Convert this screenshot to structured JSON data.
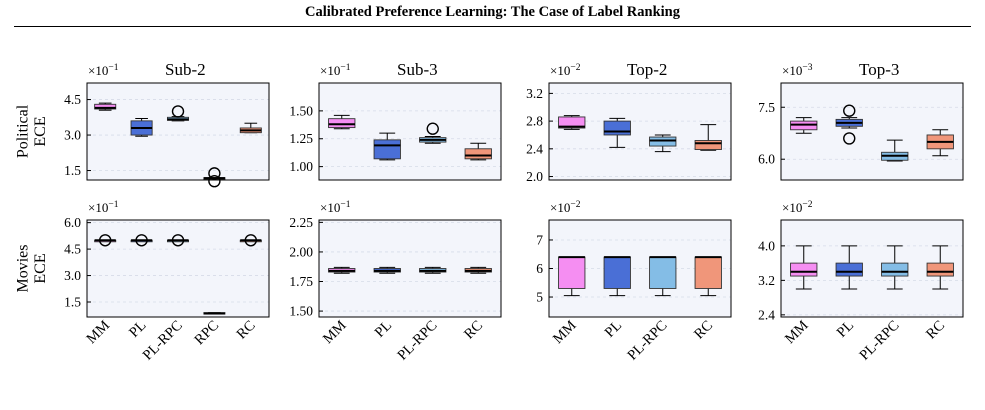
{
  "header": {
    "title": "Calibrated Preference Learning: The Case of Label Ranking"
  },
  "caption": {
    "text": ""
  },
  "colors": {
    "MM": "#f58ef2",
    "PL": "#4a6fd6",
    "PL-RPC": "#84bde6",
    "RPC": "#a8a8a8",
    "RC": "#f0967a",
    "plot_bg": "#f3f5fb",
    "grid": "#d6dbe8"
  },
  "chart_data": {
    "type": "box",
    "methods": [
      "MM",
      "PL",
      "PL-RPC",
      "RPC",
      "RC"
    ],
    "columns": [
      "Sub-2",
      "Sub-3",
      "Top-2",
      "Top-3"
    ],
    "rows": [
      {
        "label_line1": "Political",
        "label_line2": "ECE"
      },
      {
        "label_line1": "Movies",
        "label_line2": "ECE"
      }
    ],
    "panels": [
      {
        "row": 0,
        "col": 0,
        "title": "Sub-2",
        "scale": "×10",
        "exp": "−1",
        "ylim": [
          1.1,
          5.2
        ],
        "yticks": [
          1.5,
          3.0,
          4.5
        ],
        "ytick_labels": [
          "1.5",
          "3.0",
          "4.5"
        ],
        "boxes": [
          {
            "method": "MM",
            "whislo": 4.05,
            "q1": 4.1,
            "med": 4.15,
            "q3": 4.3,
            "whishi": 4.35,
            "fliers": []
          },
          {
            "method": "PL",
            "whislo": 2.95,
            "q1": 3.0,
            "med": 3.3,
            "q3": 3.6,
            "whishi": 3.7,
            "fliers": []
          },
          {
            "method": "PL-RPC",
            "whislo": 3.6,
            "q1": 3.62,
            "med": 3.66,
            "q3": 3.75,
            "whishi": 3.78,
            "fliers": [
              4.0
            ]
          },
          {
            "method": "RPC",
            "whislo": 1.18,
            "q1": 1.18,
            "med": 1.18,
            "q3": 1.2,
            "whishi": 1.2,
            "fliers": [
              1.05,
              1.38
            ]
          },
          {
            "method": "RC",
            "whislo": 3.1,
            "q1": 3.1,
            "med": 3.2,
            "q3": 3.3,
            "whishi": 3.5,
            "fliers": []
          }
        ]
      },
      {
        "row": 0,
        "col": 1,
        "title": "Sub-3",
        "scale": "×10",
        "exp": "−1",
        "ylim": [
          0.88,
          1.75
        ],
        "yticks": [
          1.0,
          1.25,
          1.5
        ],
        "ytick_labels": [
          "1.00",
          "1.25",
          "1.50"
        ],
        "boxes": [
          {
            "method": "MM",
            "whislo": 1.34,
            "q1": 1.35,
            "med": 1.38,
            "q3": 1.43,
            "whishi": 1.46,
            "fliers": []
          },
          {
            "method": "PL",
            "whislo": 1.06,
            "q1": 1.07,
            "med": 1.19,
            "q3": 1.24,
            "whishi": 1.3,
            "fliers": []
          },
          {
            "method": "PL-RPC",
            "whislo": 1.21,
            "q1": 1.22,
            "med": 1.24,
            "q3": 1.26,
            "whishi": 1.27,
            "fliers": [
              1.34
            ]
          },
          {
            "method": "RC",
            "whislo": 1.06,
            "q1": 1.07,
            "med": 1.1,
            "q3": 1.16,
            "whishi": 1.21,
            "fliers": []
          }
        ]
      },
      {
        "row": 0,
        "col": 2,
        "title": "Top-2",
        "scale": "×10",
        "exp": "−2",
        "ylim": [
          1.95,
          3.35
        ],
        "yticks": [
          2.0,
          2.4,
          2.8,
          3.2
        ],
        "ytick_labels": [
          "2.0",
          "2.4",
          "2.8",
          "3.2"
        ],
        "boxes": [
          {
            "method": "MM",
            "whislo": 2.68,
            "q1": 2.7,
            "med": 2.72,
            "q3": 2.86,
            "whishi": 2.88,
            "fliers": []
          },
          {
            "method": "PL",
            "whislo": 2.42,
            "q1": 2.6,
            "med": 2.65,
            "q3": 2.8,
            "whishi": 2.84,
            "fliers": []
          },
          {
            "method": "PL-RPC",
            "whislo": 2.36,
            "q1": 2.44,
            "med": 2.52,
            "q3": 2.57,
            "whishi": 2.6,
            "fliers": []
          },
          {
            "method": "RC",
            "whislo": 2.38,
            "q1": 2.39,
            "med": 2.48,
            "q3": 2.52,
            "whishi": 2.75,
            "fliers": []
          }
        ]
      },
      {
        "row": 0,
        "col": 3,
        "title": "Top-3",
        "scale": "×10",
        "exp": "−3",
        "ylim": [
          5.4,
          8.2
        ],
        "yticks": [
          6.0,
          7.5
        ],
        "ytick_labels": [
          "6.0",
          "7.5"
        ],
        "boxes": [
          {
            "method": "MM",
            "whislo": 6.75,
            "q1": 6.85,
            "med": 7.0,
            "q3": 7.1,
            "whishi": 7.2,
            "fliers": []
          },
          {
            "method": "PL",
            "whislo": 6.9,
            "q1": 6.95,
            "med": 7.05,
            "q3": 7.15,
            "whishi": 7.2,
            "fliers": [
              6.6,
              7.4
            ]
          },
          {
            "method": "PL-RPC",
            "whislo": 5.95,
            "q1": 5.97,
            "med": 6.1,
            "q3": 6.2,
            "whishi": 6.55,
            "fliers": []
          },
          {
            "method": "RC",
            "whislo": 6.1,
            "q1": 6.3,
            "med": 6.5,
            "q3": 6.7,
            "whishi": 6.85,
            "fliers": []
          }
        ]
      },
      {
        "row": 1,
        "col": 0,
        "title": "",
        "scale": "×10",
        "exp": "−1",
        "ylim": [
          0.65,
          6.15
        ],
        "yticks": [
          1.5,
          3.0,
          4.5,
          6.0
        ],
        "ytick_labels": [
          "1.5",
          "3.0",
          "4.5",
          "6.0"
        ],
        "boxes": [
          {
            "method": "MM",
            "whislo": 5.0,
            "q1": 5.0,
            "med": 5.0,
            "q3": 5.0,
            "whishi": 5.0,
            "fliers": [
              5.0
            ]
          },
          {
            "method": "PL",
            "whislo": 5.0,
            "q1": 5.0,
            "med": 5.0,
            "q3": 5.0,
            "whishi": 5.0,
            "fliers": [
              5.0
            ]
          },
          {
            "method": "PL-RPC",
            "whislo": 5.0,
            "q1": 5.0,
            "med": 5.0,
            "q3": 5.0,
            "whishi": 5.0,
            "fliers": [
              5.0
            ]
          },
          {
            "method": "RPC",
            "whislo": 0.83,
            "q1": 0.83,
            "med": 0.85,
            "q3": 0.9,
            "whishi": 0.9,
            "fliers": []
          },
          {
            "method": "RC",
            "whislo": 5.0,
            "q1": 5.0,
            "med": 5.0,
            "q3": 5.0,
            "whishi": 5.0,
            "fliers": [
              5.0
            ]
          }
        ]
      },
      {
        "row": 1,
        "col": 1,
        "title": "",
        "scale": "×10",
        "exp": "−1",
        "ylim": [
          1.45,
          2.27
        ],
        "yticks": [
          1.5,
          1.75,
          2.0,
          2.25
        ],
        "ytick_labels": [
          "1.50",
          "1.75",
          "2.00",
          "2.25"
        ],
        "boxes": [
          {
            "method": "MM",
            "whislo": 1.82,
            "q1": 1.83,
            "med": 1.84,
            "q3": 1.86,
            "whishi": 1.87,
            "fliers": []
          },
          {
            "method": "PL",
            "whislo": 1.82,
            "q1": 1.83,
            "med": 1.84,
            "q3": 1.86,
            "whishi": 1.87,
            "fliers": []
          },
          {
            "method": "PL-RPC",
            "whislo": 1.82,
            "q1": 1.83,
            "med": 1.84,
            "q3": 1.86,
            "whishi": 1.87,
            "fliers": []
          },
          {
            "method": "RC",
            "whislo": 1.82,
            "q1": 1.83,
            "med": 1.84,
            "q3": 1.86,
            "whishi": 1.87,
            "fliers": []
          }
        ]
      },
      {
        "row": 1,
        "col": 2,
        "title": "",
        "scale": "×10",
        "exp": "−2",
        "ylim": [
          4.3,
          7.7
        ],
        "yticks": [
          5,
          6,
          7
        ],
        "ytick_labels": [
          "5",
          "6",
          "7"
        ],
        "boxes": [
          {
            "method": "MM",
            "whislo": 5.05,
            "q1": 5.3,
            "med": 6.4,
            "q3": 6.4,
            "whishi": 6.4,
            "fliers": []
          },
          {
            "method": "PL",
            "whislo": 5.05,
            "q1": 5.3,
            "med": 6.4,
            "q3": 6.4,
            "whishi": 6.4,
            "fliers": []
          },
          {
            "method": "PL-RPC",
            "whislo": 5.05,
            "q1": 5.3,
            "med": 6.4,
            "q3": 6.4,
            "whishi": 6.4,
            "fliers": []
          },
          {
            "method": "RC",
            "whislo": 5.05,
            "q1": 5.3,
            "med": 6.4,
            "q3": 6.4,
            "whishi": 6.4,
            "fliers": []
          }
        ]
      },
      {
        "row": 1,
        "col": 3,
        "title": "",
        "scale": "×10",
        "exp": "−2",
        "ylim": [
          2.35,
          4.6
        ],
        "yticks": [
          2.4,
          3.2,
          4.0
        ],
        "ytick_labels": [
          "2.4",
          "3.2",
          "4.0"
        ],
        "boxes": [
          {
            "method": "MM",
            "whislo": 3.0,
            "q1": 3.3,
            "med": 3.4,
            "q3": 3.6,
            "whishi": 4.0,
            "fliers": []
          },
          {
            "method": "PL",
            "whislo": 3.0,
            "q1": 3.3,
            "med": 3.4,
            "q3": 3.6,
            "whishi": 4.0,
            "fliers": []
          },
          {
            "method": "PL-RPC",
            "whislo": 3.0,
            "q1": 3.3,
            "med": 3.4,
            "q3": 3.6,
            "whishi": 4.0,
            "fliers": []
          },
          {
            "method": "RC",
            "whislo": 3.0,
            "q1": 3.3,
            "med": 3.4,
            "q3": 3.6,
            "whishi": 4.0,
            "fliers": []
          }
        ]
      }
    ]
  }
}
